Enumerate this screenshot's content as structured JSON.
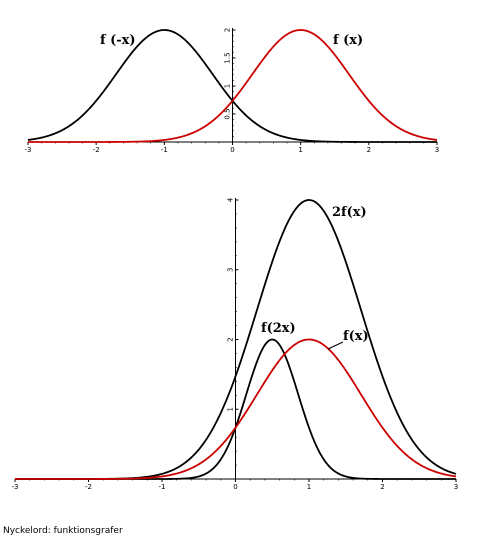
{
  "caption": "Nyckelord: funktionsgrafer",
  "colors": {
    "black": "#000000",
    "red": "#cc0000"
  },
  "chart_data": [
    {
      "type": "line",
      "title": "",
      "xlabel": "",
      "ylabel": "",
      "xlim": [
        -3,
        3
      ],
      "ylim": [
        0,
        2
      ],
      "x_ticks": [
        "-3",
        "-2",
        "-1",
        "0",
        "1",
        "2",
        "3"
      ],
      "y_ticks": [
        "0.5",
        "1",
        "1.5",
        "2"
      ],
      "grid": false,
      "legend": "none",
      "series": [
        {
          "name": "f (-x)",
          "color": "black",
          "formula": "2*exp(-(x+1)^2)",
          "x": [
            -3,
            -2,
            -1.5,
            -1,
            -0.5,
            0,
            0.5,
            1,
            2,
            3
          ],
          "y": [
            0.04,
            0.74,
            1.56,
            2.0,
            1.56,
            0.74,
            0.21,
            0.04,
            0.0,
            0.0
          ]
        },
        {
          "name": "f (x)",
          "color": "red",
          "formula": "2*exp(-(x-1)^2)",
          "x": [
            -3,
            -2,
            -1,
            -0.5,
            0,
            0.5,
            1,
            1.5,
            2,
            3
          ],
          "y": [
            0.0,
            0.0,
            0.04,
            0.21,
            0.74,
            1.56,
            2.0,
            1.56,
            0.74,
            0.04
          ]
        }
      ]
    },
    {
      "type": "line",
      "title": "",
      "xlabel": "",
      "ylabel": "",
      "xlim": [
        -3,
        3
      ],
      "ylim": [
        0,
        4
      ],
      "x_ticks": [
        "-3",
        "-2",
        "-1",
        "0",
        "1",
        "2",
        "3"
      ],
      "y_ticks": [
        "1",
        "2",
        "3",
        "4"
      ],
      "grid": false,
      "legend": "none",
      "series": [
        {
          "name": "2f(x)",
          "color": "black",
          "formula": "4*exp(-(x-1)^2)",
          "x": [
            -1,
            -0.5,
            0,
            0.5,
            1,
            1.5,
            2,
            2.5,
            3
          ],
          "y": [
            0.07,
            0.42,
            1.47,
            3.12,
            4.0,
            3.12,
            1.47,
            0.42,
            0.07
          ]
        },
        {
          "name": "f(2x)",
          "color": "black",
          "formula": "2*exp(-(2x-1)^2)",
          "x": [
            -0.5,
            -0.25,
            0,
            0.25,
            0.5,
            0.75,
            1,
            1.25,
            1.5
          ],
          "y": [
            0.04,
            0.21,
            0.74,
            1.56,
            2.0,
            1.56,
            0.74,
            0.21,
            0.04
          ]
        },
        {
          "name": "f(x)",
          "color": "red",
          "formula": "2*exp(-(x-1)^2)",
          "x": [
            -1,
            -0.5,
            0,
            0.5,
            1,
            1.5,
            2,
            2.5,
            3
          ],
          "y": [
            0.04,
            0.21,
            0.74,
            1.56,
            2.0,
            1.56,
            0.74,
            0.21,
            0.04
          ]
        }
      ]
    }
  ]
}
